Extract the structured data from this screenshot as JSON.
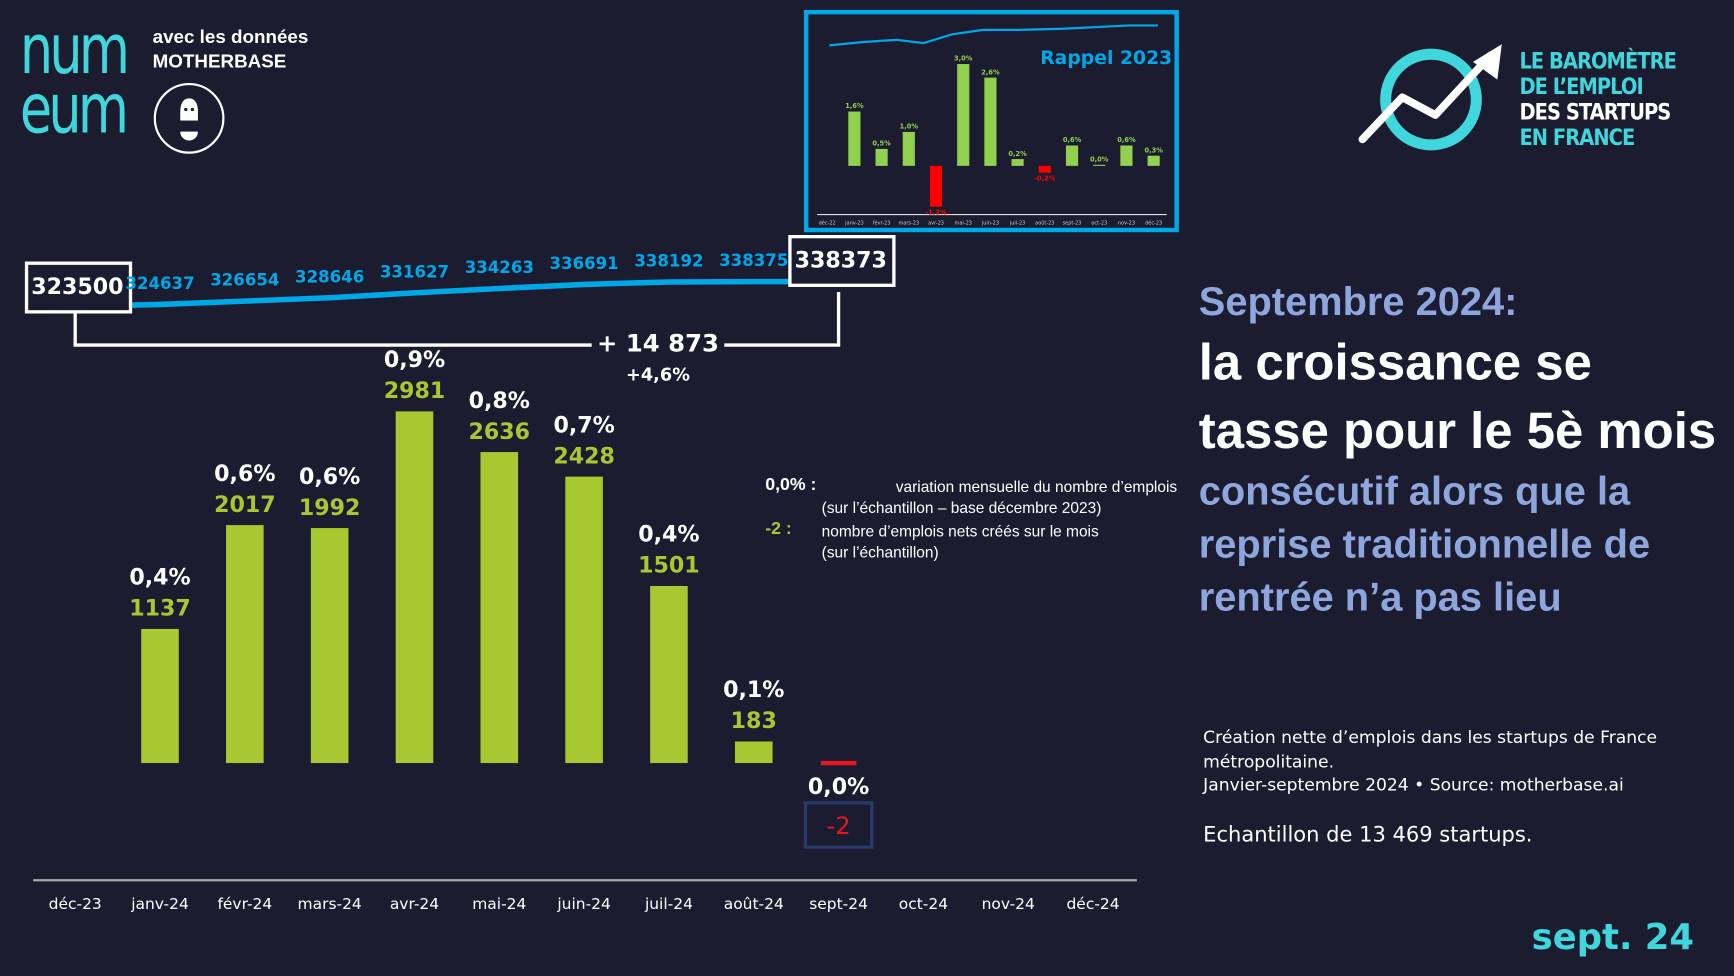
{
  "header": {
    "brand_logo": "numeum",
    "data_credit_line1": "avec les données",
    "data_credit_line2": "MOTHERBASE",
    "barometer_line1": "LE BAROMÈTRE",
    "barometer_line2": "DE L’EMPLOI",
    "barometer_line3": "DES STARTUPS",
    "barometer_line4": "EN FRANCE"
  },
  "headline": {
    "month": "Septembre 2024:",
    "main": "la croissance se tasse pour le 5è mois",
    "sub": "consécutif alors que la reprise traditionnelle de rentrée n’a pas lieu"
  },
  "notes": {
    "line1": "Création nette d’emplois dans les startups de France métropolitaine.",
    "line2": "Janvier-septembre 2024 • Source: motherbase.ai",
    "sample": "Echantillon de 13 469 startups."
  },
  "footer_date": "sept. 24",
  "legend": {
    "pct_key": "0,0% :",
    "pct_desc1": "variation mensuelle du nombre d’emplois",
    "pct_desc2": "(sur l’échantillon – base décembre 2023)",
    "count_key": "-2 :",
    "count_desc1": "nombre d’emplois nets créés sur le mois",
    "count_desc2": "(sur l’échantillon)"
  },
  "colors": {
    "bar": "#a8c832",
    "line": "#00a8e8",
    "negative": "#e8141e",
    "teal": "#3fd6dc",
    "bg": "#1b1c30"
  },
  "chart_data": [
    {
      "type": "bar",
      "title": "",
      "categories": [
        "déc-23",
        "janv-24",
        "févr-24",
        "mars-24",
        "avr-24",
        "mai-24",
        "juin-24",
        "juil-24",
        "août-24",
        "sept-24",
        "oct-24",
        "nov-24",
        "déc-24"
      ],
      "series": [
        {
          "name": "nombre d’emplois nets créés",
          "values": [
            null,
            1137,
            2017,
            1992,
            2981,
            2636,
            2428,
            1501,
            183,
            -2,
            null,
            null,
            null
          ]
        },
        {
          "name": "variation mensuelle",
          "labels": [
            null,
            "0,4%",
            "0,6%",
            "0,6%",
            "0,9%",
            "0,8%",
            "0,7%",
            "0,4%",
            "0,1%",
            "0,0%",
            null,
            null,
            null
          ]
        },
        {
          "name": "emplois totaux",
          "type": "line",
          "values": [
            323500,
            324637,
            326654,
            328646,
            331627,
            334263,
            336691,
            338192,
            338375,
            338373,
            null,
            null,
            null
          ]
        }
      ],
      "annotation": {
        "delta": "+ 14 873",
        "delta_pct": "+4,6%",
        "start": "323500",
        "end": "338373"
      }
    },
    {
      "type": "bar",
      "title": "Rappel 2023",
      "categories": [
        "déc-22",
        "janv-23",
        "févr-23",
        "mars-23",
        "avr-23",
        "mai-23",
        "juin-23",
        "juil-23",
        "août-23",
        "sept-23",
        "oct-23",
        "nov-23",
        "déc-23"
      ],
      "values": [
        null,
        1.6,
        0.5,
        1.0,
        -1.2,
        3.0,
        2.6,
        0.2,
        -0.2,
        0.6,
        0.0,
        0.6,
        0.3
      ],
      "labels": [
        null,
        "1,6%",
        "0,5%",
        "1,0%",
        "-1,2%",
        "3,0%",
        "2,6%",
        "0,2%",
        "-0,2%",
        "0,6%",
        "0,0%",
        "0,6%",
        "0,3%"
      ]
    }
  ]
}
